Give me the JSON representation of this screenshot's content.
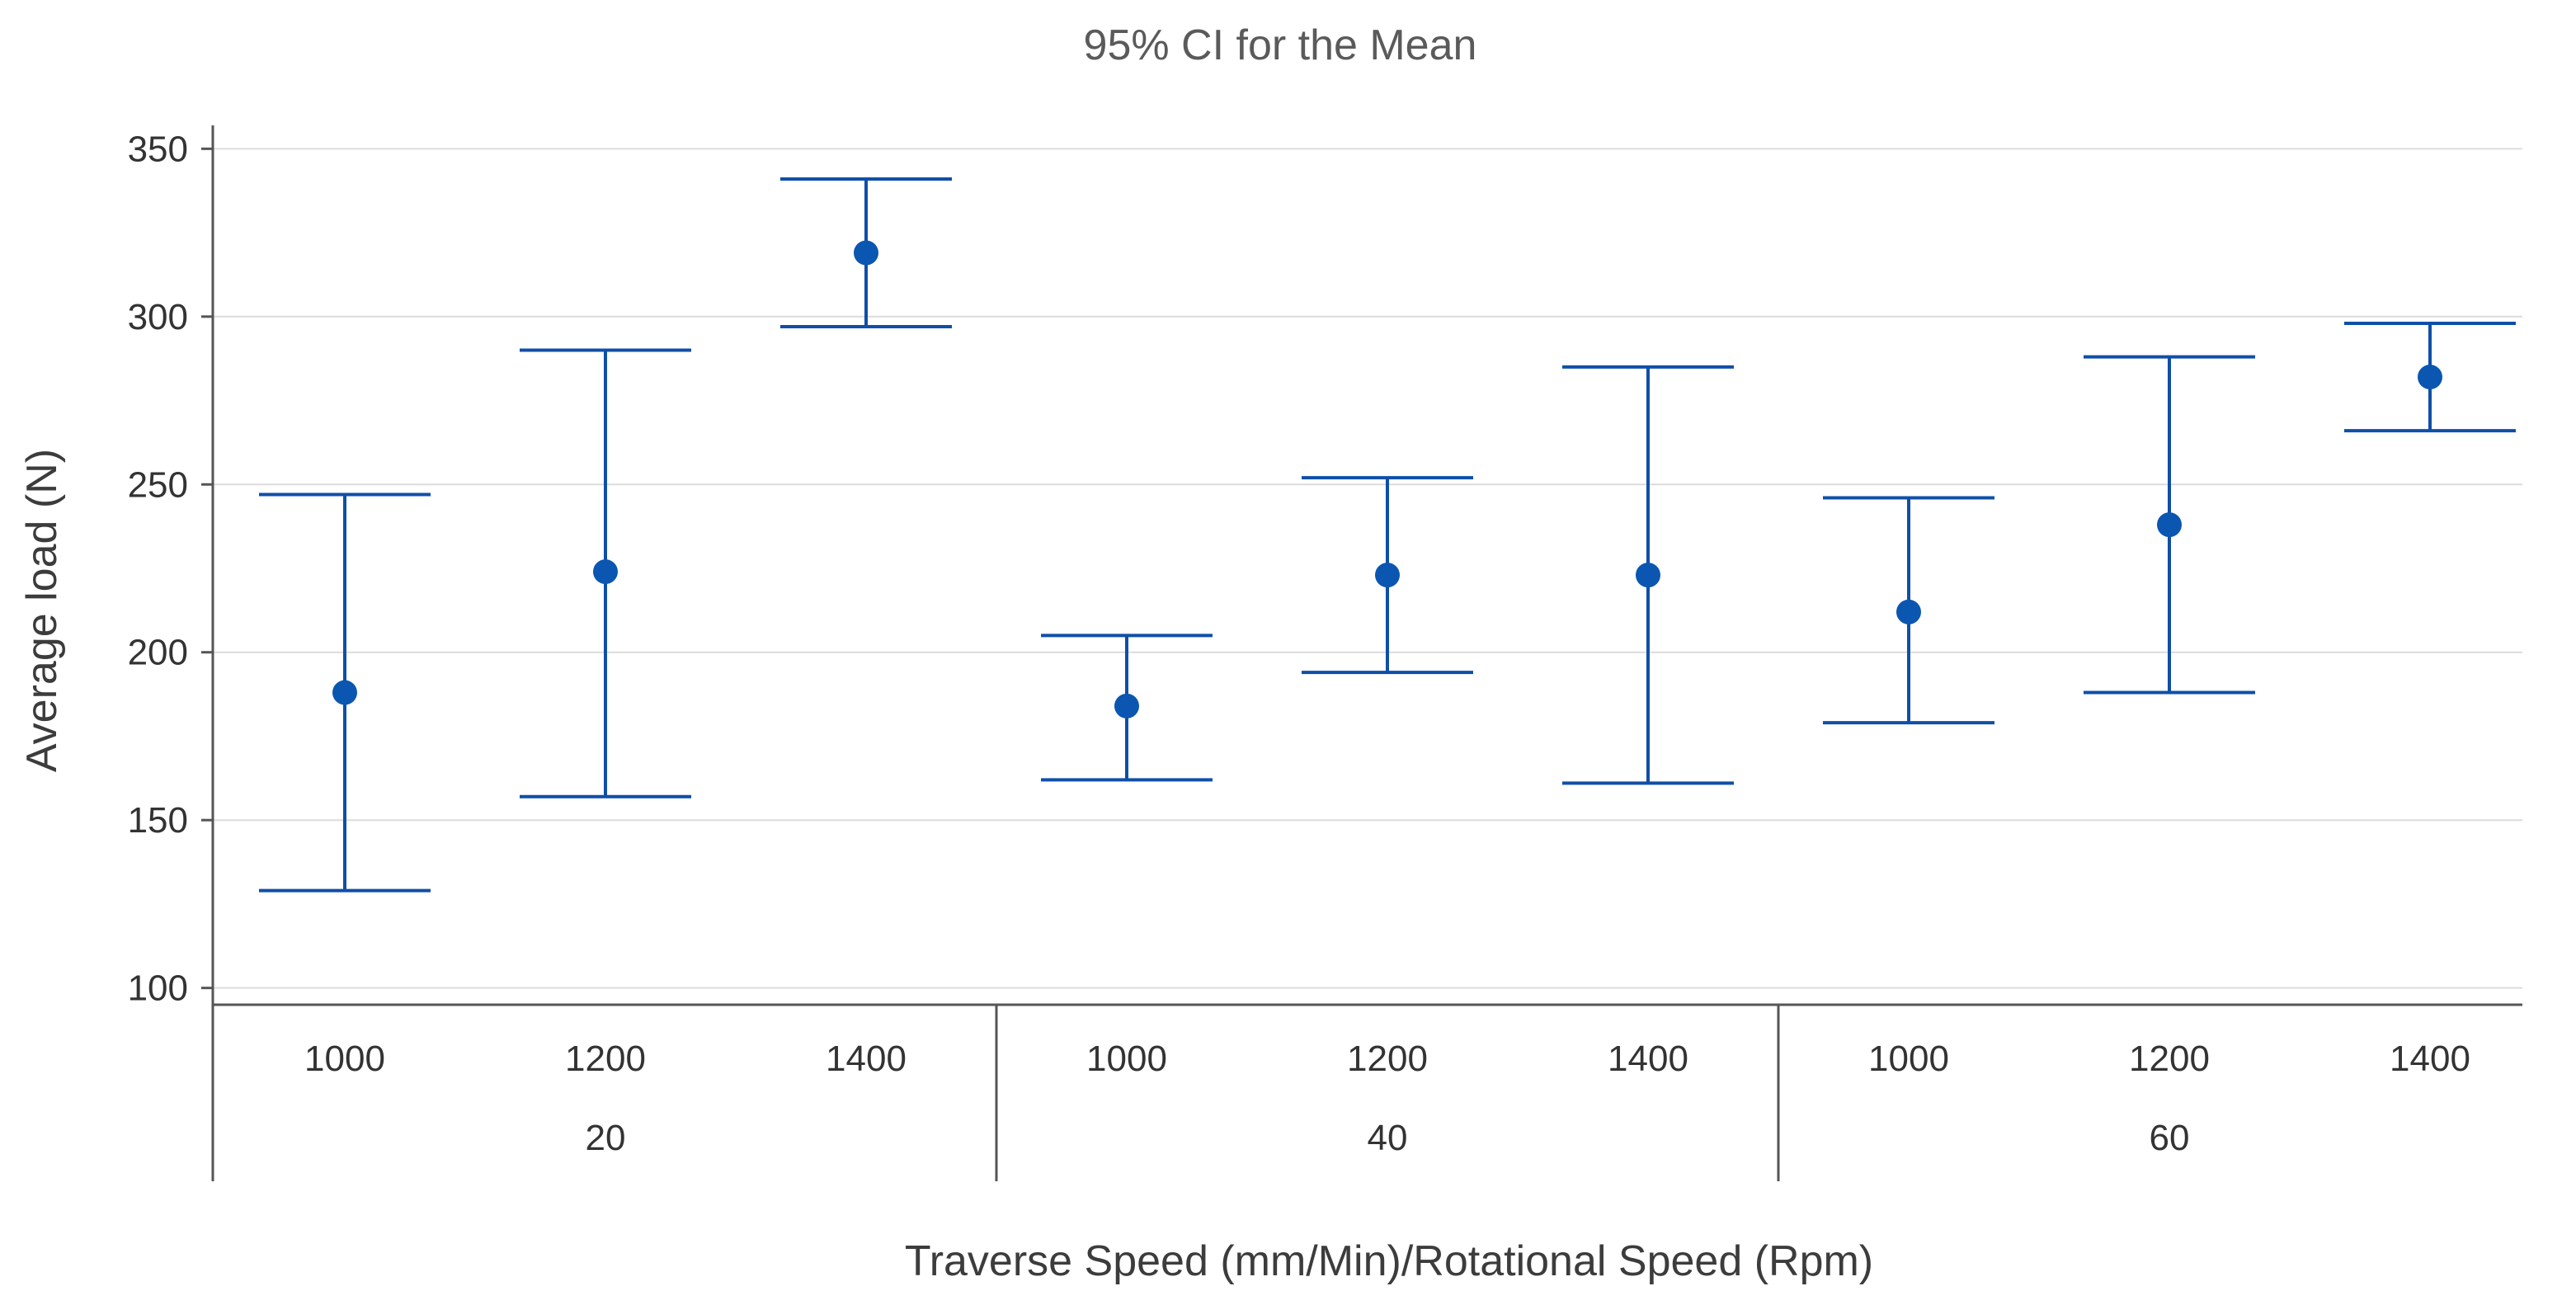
{
  "chart_data": {
    "type": "interval",
    "title": "95% CI for the Mean",
    "ylabel": "Average load (N)",
    "xlabel": "Traverse Speed (mm/Min)/Rotational Speed (Rpm)",
    "ylim": [
      95,
      355
    ],
    "yticks": [
      100,
      150,
      200,
      250,
      300,
      350
    ],
    "grid": true,
    "color": "#0f4fa8",
    "marker_color": "#0b56b0",
    "groups": [
      {
        "label": "20",
        "categories": [
          "1000",
          "1200",
          "1400"
        ]
      },
      {
        "label": "40",
        "categories": [
          "1000",
          "1200",
          "1400"
        ]
      },
      {
        "label": "60",
        "categories": [
          "1000",
          "1200",
          "1400"
        ]
      }
    ],
    "points": [
      {
        "group": "20",
        "category": "1000",
        "mean": 188,
        "lower": 129,
        "upper": 247
      },
      {
        "group": "20",
        "category": "1200",
        "mean": 224,
        "lower": 157,
        "upper": 290
      },
      {
        "group": "20",
        "category": "1400",
        "mean": 319,
        "lower": 297,
        "upper": 341
      },
      {
        "group": "40",
        "category": "1000",
        "mean": 184,
        "lower": 162,
        "upper": 205
      },
      {
        "group": "40",
        "category": "1200",
        "mean": 223,
        "lower": 194,
        "upper": 252
      },
      {
        "group": "40",
        "category": "1400",
        "mean": 223,
        "lower": 161,
        "upper": 285
      },
      {
        "group": "60",
        "category": "1000",
        "mean": 212,
        "lower": 179,
        "upper": 246
      },
      {
        "group": "60",
        "category": "1200",
        "mean": 238,
        "lower": 188,
        "upper": 288
      },
      {
        "group": "60",
        "category": "1400",
        "mean": 282,
        "lower": 266,
        "upper": 298
      }
    ]
  }
}
